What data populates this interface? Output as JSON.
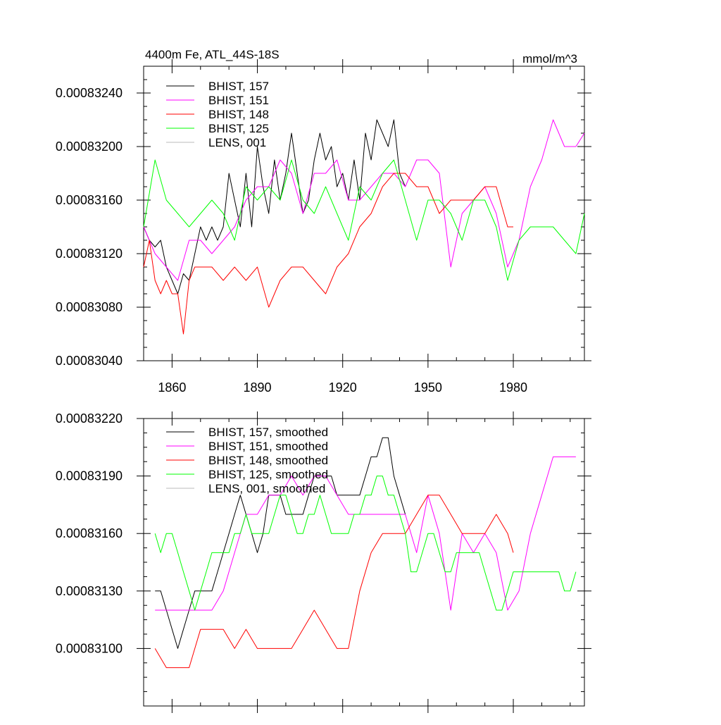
{
  "colors": {
    "bhist_157": "#000000",
    "bhist_151": "#ff00ff",
    "bhist_148": "#ff0000",
    "bhist_125": "#00ff00",
    "lens_001": "#bbbbbb"
  },
  "chart_data": [
    {
      "type": "line",
      "title": "4400m Fe, ATL_44S-18S",
      "units_label": "mmol/m^3",
      "xlim": [
        1850,
        2005
      ],
      "ylim": [
        0.0008304,
        0.0008326
      ],
      "xticks": [
        1860,
        1890,
        1920,
        1950,
        1980
      ],
      "xtick_labels": [
        "1860",
        "1890",
        "1920",
        "1950",
        "1980"
      ],
      "yticks": [
        0.0008304,
        0.0008308,
        0.0008312,
        0.0008316,
        0.000832,
        0.0008324
      ],
      "ytick_labels": [
        "0.00083040",
        "0.00083080",
        "0.00083120",
        "0.00083160",
        "0.00083200",
        "0.00083240"
      ],
      "legend_position": "top-left",
      "series": [
        {
          "name": "BHIST, 157",
          "color_key": "bhist_157",
          "x": [
            1850,
            1852,
            1854,
            1856,
            1858,
            1860,
            1862,
            1864,
            1866,
            1868,
            1870,
            1872,
            1874,
            1876,
            1878,
            1880,
            1882,
            1884,
            1886,
            1888,
            1890,
            1892,
            1894,
            1896,
            1898,
            1900,
            1902,
            1904,
            1906,
            1908,
            1910,
            1912,
            1914,
            1916,
            1918,
            1920,
            1922,
            1924,
            1926,
            1928,
            1930,
            1932,
            1934,
            1936,
            1938,
            1940,
            1942
          ],
          "y": [
            0.0008314,
            0.0008313,
            0.00083125,
            0.0008313,
            0.0008311,
            0.000831,
            0.0008309,
            0.00083105,
            0.000831,
            0.0008312,
            0.0008314,
            0.0008313,
            0.0008314,
            0.0008313,
            0.0008314,
            0.0008318,
            0.0008316,
            0.0008314,
            0.0008318,
            0.0008314,
            0.000832,
            0.0008317,
            0.0008315,
            0.0008319,
            0.0008316,
            0.0008318,
            0.0008321,
            0.0008318,
            0.0008315,
            0.0008316,
            0.0008319,
            0.0008321,
            0.0008319,
            0.000832,
            0.0008317,
            0.0008318,
            0.0008316,
            0.0008319,
            0.0008316,
            0.0008321,
            0.0008319,
            0.0008322,
            0.0008321,
            0.000832,
            0.0008322,
            0.0008318,
            0.0008317
          ]
        },
        {
          "name": "BHIST, 151",
          "color_key": "bhist_151",
          "x": [
            1850,
            1854,
            1858,
            1862,
            1866,
            1870,
            1874,
            1878,
            1882,
            1886,
            1890,
            1894,
            1898,
            1902,
            1906,
            1910,
            1914,
            1918,
            1922,
            1926,
            1930,
            1934,
            1938,
            1942,
            1946,
            1950,
            1954,
            1958,
            1962,
            1966,
            1970,
            1974,
            1978,
            1982,
            1986,
            1990,
            1994,
            1998,
            2002,
            2005
          ],
          "y": [
            0.0008314,
            0.0008312,
            0.0008311,
            0.000831,
            0.0008313,
            0.0008313,
            0.0008312,
            0.0008313,
            0.0008314,
            0.0008316,
            0.0008317,
            0.0008317,
            0.0008319,
            0.0008318,
            0.0008315,
            0.0008318,
            0.0008318,
            0.0008319,
            0.0008316,
            0.0008316,
            0.0008317,
            0.0008318,
            0.0008318,
            0.0008317,
            0.0008319,
            0.0008319,
            0.0008318,
            0.0008311,
            0.0008315,
            0.0008316,
            0.0008317,
            0.0008315,
            0.0008311,
            0.0008313,
            0.0008317,
            0.0008319,
            0.0008322,
            0.000832,
            0.000832,
            0.0008321
          ]
        },
        {
          "name": "BHIST, 148",
          "color_key": "bhist_148",
          "x": [
            1850,
            1852,
            1854,
            1856,
            1858,
            1860,
            1862,
            1864,
            1866,
            1868,
            1870,
            1874,
            1878,
            1882,
            1886,
            1890,
            1894,
            1898,
            1902,
            1906,
            1910,
            1914,
            1918,
            1922,
            1926,
            1930,
            1934,
            1938,
            1942,
            1946,
            1950,
            1954,
            1958,
            1962,
            1966,
            1970,
            1974,
            1978,
            1980
          ],
          "y": [
            0.0008311,
            0.0008313,
            0.000831,
            0.0008309,
            0.000831,
            0.0008309,
            0.0008309,
            0.0008306,
            0.000831,
            0.0008311,
            0.0008311,
            0.0008311,
            0.000831,
            0.0008311,
            0.000831,
            0.0008311,
            0.0008308,
            0.000831,
            0.0008311,
            0.0008311,
            0.000831,
            0.0008309,
            0.0008311,
            0.0008312,
            0.0008314,
            0.0008315,
            0.0008317,
            0.0008318,
            0.0008318,
            0.0008317,
            0.0008317,
            0.0008315,
            0.0008316,
            0.0008316,
            0.0008316,
            0.0008317,
            0.0008317,
            0.0008314,
            0.0008314
          ]
        },
        {
          "name": "BHIST, 125",
          "color_key": "bhist_125",
          "x": [
            1850,
            1854,
            1858,
            1862,
            1866,
            1870,
            1874,
            1878,
            1882,
            1886,
            1890,
            1894,
            1898,
            1902,
            1906,
            1910,
            1914,
            1918,
            1922,
            1926,
            1930,
            1934,
            1938,
            1942,
            1946,
            1950,
            1954,
            1958,
            1962,
            1966,
            1970,
            1974,
            1978,
            1982,
            1986,
            1990,
            1994,
            1998,
            2002,
            2005
          ],
          "y": [
            0.0008314,
            0.0008319,
            0.0008316,
            0.0008315,
            0.0008314,
            0.0008315,
            0.0008316,
            0.0008315,
            0.0008313,
            0.0008317,
            0.0008316,
            0.0008317,
            0.0008316,
            0.0008319,
            0.0008316,
            0.0008315,
            0.0008317,
            0.0008315,
            0.0008313,
            0.0008317,
            0.0008316,
            0.0008318,
            0.0008319,
            0.0008316,
            0.0008313,
            0.0008316,
            0.0008316,
            0.0008315,
            0.0008313,
            0.0008316,
            0.0008316,
            0.0008314,
            0.000831,
            0.0008313,
            0.0008314,
            0.0008314,
            0.0008314,
            0.0008313,
            0.0008312,
            0.0008315
          ]
        },
        {
          "name": "LENS, 001",
          "color_key": "lens_001",
          "x": [],
          "y": []
        }
      ]
    },
    {
      "type": "line",
      "title": "",
      "units_label": "",
      "xlim": [
        1850,
        2005
      ],
      "ylim": [
        0.0008307,
        0.0008322
      ],
      "xticks": [
        1860,
        1890,
        1920,
        1950,
        1980
      ],
      "xtick_labels": [],
      "yticks": [
        0.000831,
        0.0008313,
        0.0008316,
        0.0008319,
        0.0008322
      ],
      "ytick_labels": [
        "0.00083100",
        "0.00083130",
        "0.00083160",
        "0.00083190",
        "0.00083220"
      ],
      "legend_position": "top-left",
      "series": [
        {
          "name": "BHIST, 157, smoothed",
          "color_key": "bhist_157",
          "x": [
            1854,
            1856,
            1858,
            1860,
            1862,
            1864,
            1866,
            1868,
            1870,
            1872,
            1874,
            1876,
            1878,
            1880,
            1882,
            1884,
            1886,
            1888,
            1890,
            1892,
            1894,
            1896,
            1898,
            1900,
            1902,
            1904,
            1906,
            1908,
            1910,
            1912,
            1914,
            1916,
            1918,
            1920,
            1922,
            1924,
            1926,
            1928,
            1930,
            1932,
            1934,
            1936,
            1938,
            1940,
            1942
          ],
          "y": [
            0.0008313,
            0.0008313,
            0.0008312,
            0.0008311,
            0.000831,
            0.0008311,
            0.0008312,
            0.0008313,
            0.0008313,
            0.0008313,
            0.0008313,
            0.0008314,
            0.0008315,
            0.0008316,
            0.0008317,
            0.0008318,
            0.0008317,
            0.0008316,
            0.0008315,
            0.0008316,
            0.0008318,
            0.0008318,
            0.0008318,
            0.0008317,
            0.0008317,
            0.0008317,
            0.0008317,
            0.0008318,
            0.0008319,
            0.0008319,
            0.0008319,
            0.0008319,
            0.0008318,
            0.0008318,
            0.0008318,
            0.0008318,
            0.0008318,
            0.0008319,
            0.000832,
            0.000832,
            0.0008321,
            0.0008321,
            0.0008319,
            0.0008318,
            0.0008317
          ]
        },
        {
          "name": "BHIST, 151, smoothed",
          "color_key": "bhist_151",
          "x": [
            1854,
            1858,
            1862,
            1866,
            1870,
            1874,
            1878,
            1882,
            1886,
            1890,
            1894,
            1898,
            1902,
            1906,
            1910,
            1914,
            1918,
            1922,
            1926,
            1930,
            1934,
            1938,
            1942,
            1946,
            1950,
            1954,
            1958,
            1962,
            1966,
            1970,
            1974,
            1978,
            1982,
            1986,
            1990,
            1994,
            1998,
            2002
          ],
          "y": [
            0.0008312,
            0.0008312,
            0.0008312,
            0.0008312,
            0.0008312,
            0.0008312,
            0.0008313,
            0.0008315,
            0.0008317,
            0.0008317,
            0.0008318,
            0.0008318,
            0.0008319,
            0.0008318,
            0.0008319,
            0.0008319,
            0.0008318,
            0.0008317,
            0.0008317,
            0.0008317,
            0.0008317,
            0.0008317,
            0.0008317,
            0.0008315,
            0.0008318,
            0.0008316,
            0.0008312,
            0.0008316,
            0.0008315,
            0.0008316,
            0.0008315,
            0.0008312,
            0.0008313,
            0.0008316,
            0.0008318,
            0.000832,
            0.000832,
            0.000832
          ]
        },
        {
          "name": "BHIST, 148, smoothed",
          "color_key": "bhist_148",
          "x": [
            1854,
            1858,
            1862,
            1866,
            1870,
            1874,
            1878,
            1882,
            1886,
            1890,
            1894,
            1898,
            1902,
            1906,
            1910,
            1914,
            1918,
            1922,
            1926,
            1930,
            1934,
            1938,
            1942,
            1946,
            1950,
            1954,
            1958,
            1962,
            1966,
            1970,
            1974,
            1978,
            1980
          ],
          "y": [
            0.000831,
            0.0008309,
            0.0008309,
            0.0008309,
            0.0008311,
            0.0008311,
            0.0008311,
            0.000831,
            0.0008311,
            0.000831,
            0.000831,
            0.000831,
            0.000831,
            0.0008311,
            0.0008312,
            0.0008311,
            0.000831,
            0.000831,
            0.0008313,
            0.0008315,
            0.0008316,
            0.0008316,
            0.0008316,
            0.0008317,
            0.0008318,
            0.0008318,
            0.0008317,
            0.0008316,
            0.0008316,
            0.0008316,
            0.0008317,
            0.0008316,
            0.0008315
          ]
        },
        {
          "name": "BHIST, 125, smoothed",
          "color_key": "bhist_125",
          "x": [
            1854,
            1856,
            1858,
            1860,
            1862,
            1864,
            1866,
            1868,
            1870,
            1872,
            1874,
            1876,
            1878,
            1880,
            1882,
            1884,
            1886,
            1888,
            1890,
            1892,
            1894,
            1896,
            1898,
            1900,
            1902,
            1904,
            1906,
            1908,
            1910,
            1912,
            1914,
            1916,
            1918,
            1920,
            1922,
            1924,
            1926,
            1928,
            1930,
            1932,
            1934,
            1936,
            1938,
            1940,
            1942,
            1944,
            1946,
            1948,
            1950,
            1952,
            1954,
            1956,
            1958,
            1960,
            1962,
            1964,
            1966,
            1968,
            1970,
            1972,
            1974,
            1976,
            1978,
            1980,
            1982,
            1984,
            1986,
            1988,
            1990,
            1992,
            1994,
            1996,
            1998,
            2000,
            2002
          ],
          "y": [
            0.0008316,
            0.0008315,
            0.0008316,
            0.0008316,
            0.0008315,
            0.0008314,
            0.0008313,
            0.0008312,
            0.0008313,
            0.0008314,
            0.0008315,
            0.0008315,
            0.0008315,
            0.0008315,
            0.0008316,
            0.0008316,
            0.0008317,
            0.0008316,
            0.0008316,
            0.0008316,
            0.0008316,
            0.0008317,
            0.0008318,
            0.0008318,
            0.0008317,
            0.0008316,
            0.0008316,
            0.0008317,
            0.0008317,
            0.0008318,
            0.0008317,
            0.0008316,
            0.0008316,
            0.0008316,
            0.0008316,
            0.0008317,
            0.0008317,
            0.0008318,
            0.0008318,
            0.0008319,
            0.0008319,
            0.0008318,
            0.0008318,
            0.0008317,
            0.0008316,
            0.0008314,
            0.0008314,
            0.0008315,
            0.0008316,
            0.0008316,
            0.0008315,
            0.0008314,
            0.0008314,
            0.0008315,
            0.0008315,
            0.0008315,
            0.0008315,
            0.0008315,
            0.0008314,
            0.0008313,
            0.0008312,
            0.0008312,
            0.0008313,
            0.0008314,
            0.0008314,
            0.0008314,
            0.0008314,
            0.0008314,
            0.0008314,
            0.0008314,
            0.0008314,
            0.0008314,
            0.0008313,
            0.0008313,
            0.0008314
          ]
        },
        {
          "name": "LENS, 001, smoothed",
          "color_key": "lens_001",
          "x": [],
          "y": []
        }
      ]
    }
  ]
}
